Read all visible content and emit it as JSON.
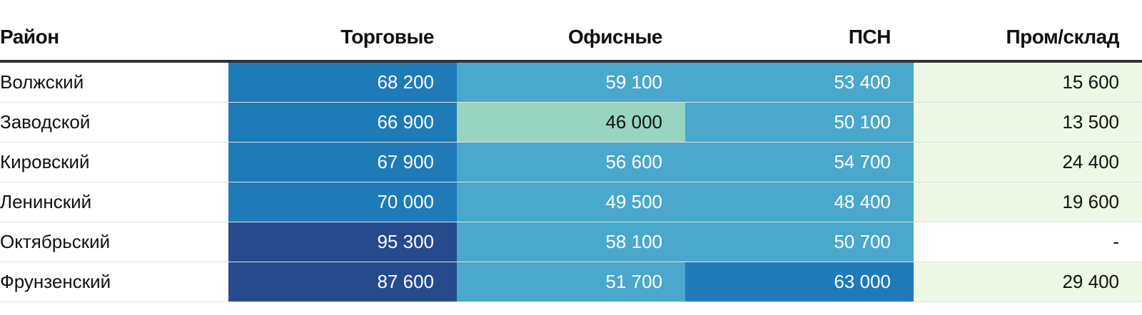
{
  "chart_data": {
    "type": "table",
    "columns": [
      "Район",
      "Торговые",
      "Офисные",
      "ПСН",
      "Пром/склад"
    ],
    "rows": [
      {
        "district": "Волжский",
        "values": [
          "68 200",
          "59 100",
          "53 400",
          "15 600"
        ]
      },
      {
        "district": "Заводской",
        "values": [
          "66 900",
          "46 000",
          "50 100",
          "13 500"
        ]
      },
      {
        "district": "Кировский",
        "values": [
          "67 900",
          "56 600",
          "54 700",
          "24 400"
        ]
      },
      {
        "district": "Ленинский",
        "values": [
          "70 000",
          "49 500",
          "48 400",
          "19 600"
        ]
      },
      {
        "district": "Октябрьский",
        "values": [
          "95 300",
          "58 100",
          "50 700",
          "-"
        ]
      },
      {
        "district": "Фрунзенский",
        "values": [
          "87 600",
          "51 700",
          "63 000",
          "29 400"
        ]
      }
    ],
    "cell_colors": [
      [
        "#1f7ab8",
        "#4aa8cc",
        "#4aa8cc",
        "#eef8e6"
      ],
      [
        "#1f7ab8",
        "#98d5c1",
        "#4aa8cc",
        "#eef8e6"
      ],
      [
        "#1f7ab8",
        "#4aa8cc",
        "#4aa8cc",
        "#eef8e6"
      ],
      [
        "#1f7ab8",
        "#4aa8cc",
        "#4aa8cc",
        "#eef8e6"
      ],
      [
        "#264b8c",
        "#4aa8cc",
        "#4aa8cc",
        "#ffffff"
      ],
      [
        "#264b8c",
        "#4aa8cc",
        "#1f7ab8",
        "#eef8e6"
      ]
    ],
    "text_colors": [
      [
        "#ffffff",
        "#ffffff",
        "#ffffff",
        "#111111"
      ],
      [
        "#ffffff",
        "#111111",
        "#ffffff",
        "#111111"
      ],
      [
        "#ffffff",
        "#ffffff",
        "#ffffff",
        "#111111"
      ],
      [
        "#ffffff",
        "#ffffff",
        "#ffffff",
        "#111111"
      ],
      [
        "#ffffff",
        "#ffffff",
        "#ffffff",
        "#111111"
      ],
      [
        "#ffffff",
        "#ffffff",
        "#ffffff",
        "#111111"
      ]
    ]
  }
}
